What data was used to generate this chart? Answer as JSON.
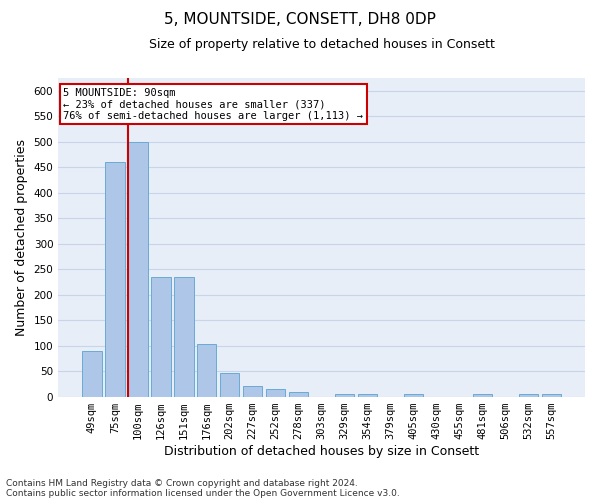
{
  "title": "5, MOUNTSIDE, CONSETT, DH8 0DP",
  "subtitle": "Size of property relative to detached houses in Consett",
  "xlabel": "Distribution of detached houses by size in Consett",
  "ylabel": "Number of detached properties",
  "categories": [
    "49sqm",
    "75sqm",
    "100sqm",
    "126sqm",
    "151sqm",
    "176sqm",
    "202sqm",
    "227sqm",
    "252sqm",
    "278sqm",
    "303sqm",
    "329sqm",
    "354sqm",
    "379sqm",
    "405sqm",
    "430sqm",
    "455sqm",
    "481sqm",
    "506sqm",
    "532sqm",
    "557sqm"
  ],
  "values": [
    90,
    460,
    500,
    235,
    235,
    103,
    47,
    20,
    14,
    9,
    0,
    5,
    5,
    0,
    5,
    0,
    0,
    5,
    0,
    5,
    5
  ],
  "bar_color": "#aec6e8",
  "bar_edgecolor": "#6aaad4",
  "subject_line_index": 2,
  "subject_line_color": "#cc0000",
  "annotation_line1": "5 MOUNTSIDE: 90sqm",
  "annotation_line2": "← 23% of detached houses are smaller (337)",
  "annotation_line3": "76% of semi-detached houses are larger (1,113) →",
  "annotation_box_color": "#cc0000",
  "ylim": [
    0,
    625
  ],
  "yticks": [
    0,
    50,
    100,
    150,
    200,
    250,
    300,
    350,
    400,
    450,
    500,
    550,
    600
  ],
  "grid_color": "#c8d4e8",
  "background_color": "#e8eef8",
  "footer_line1": "Contains HM Land Registry data © Crown copyright and database right 2024.",
  "footer_line2": "Contains public sector information licensed under the Open Government Licence v3.0.",
  "title_fontsize": 11,
  "subtitle_fontsize": 9,
  "xlabel_fontsize": 9,
  "ylabel_fontsize": 9,
  "tick_fontsize": 7.5,
  "annotation_fontsize": 7.5,
  "footer_fontsize": 6.5
}
